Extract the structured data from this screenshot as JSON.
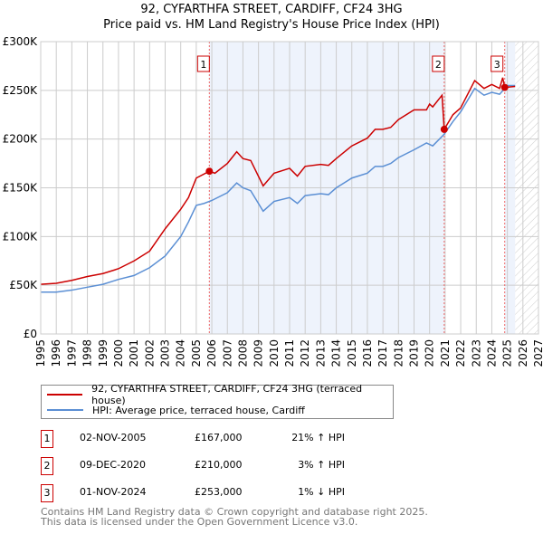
{
  "chart_data": {
    "type": "line",
    "title": "92, CYFARTHFA STREET, CARDIFF, CF24 3HG",
    "subtitle": "Price paid vs. HM Land Registry's House Price Index (HPI)",
    "xlim": [
      1995,
      2027
    ],
    "ylim": [
      0,
      300000
    ],
    "x_ticks": [
      "1995",
      "1996",
      "1997",
      "1998",
      "1999",
      "2000",
      "2001",
      "2002",
      "2003",
      "2004",
      "2005",
      "2006",
      "2007",
      "2008",
      "2009",
      "2010",
      "2011",
      "2012",
      "2013",
      "2014",
      "2015",
      "2016",
      "2017",
      "2018",
      "2019",
      "2020",
      "2021",
      "2022",
      "2023",
      "2024",
      "2025",
      "2026",
      "2027"
    ],
    "y_ticks": [
      {
        "v": 0,
        "label": "£0"
      },
      {
        "v": 50000,
        "label": "£50K"
      },
      {
        "v": 100000,
        "label": "£100K"
      },
      {
        "v": 150000,
        "label": "£150K"
      },
      {
        "v": 200000,
        "label": "£200K"
      },
      {
        "v": 250000,
        "label": "£250K"
      },
      {
        "v": 300000,
        "label": "£300K"
      }
    ],
    "grid": true,
    "shaded_ranges": [
      [
        2005.84,
        2020.94
      ],
      [
        2024.83,
        2025.5
      ]
    ],
    "hatched_range": [
      2025.5,
      2027
    ],
    "series": [
      {
        "name": "92, CYFARTHFA STREET, CARDIFF, CF24 3HG (terraced house)",
        "color": "#cc0000",
        "x": [
          1995,
          1996,
          1997,
          1998,
          1999,
          2000,
          2001,
          2002,
          2003,
          2004,
          2004.5,
          2005,
          2005.84,
          2006.2,
          2007,
          2007.6,
          2008,
          2008.5,
          2009.3,
          2010,
          2011,
          2011.5,
          2012,
          2013,
          2013.5,
          2014,
          2015,
          2016,
          2016.5,
          2017,
          2017.5,
          2018,
          2019,
          2019.8,
          2020,
          2020.2,
          2020.8,
          2020.94,
          2021.5,
          2022,
          2022.9,
          2023.5,
          2024,
          2024.5,
          2024.7,
          2024.83,
          2025.5
        ],
        "y": [
          51000,
          52000,
          55000,
          59000,
          62000,
          67000,
          75000,
          85000,
          108000,
          128000,
          140000,
          160000,
          167000,
          165000,
          175000,
          187000,
          180000,
          178000,
          152000,
          165000,
          170000,
          162000,
          172000,
          174000,
          173000,
          180000,
          193000,
          201000,
          210000,
          210000,
          212000,
          220000,
          230000,
          230000,
          236000,
          233000,
          245000,
          210000,
          225000,
          232000,
          260000,
          252000,
          256000,
          252000,
          263000,
          253000,
          254000
        ]
      },
      {
        "name": "HPI: Average price, terraced house, Cardiff",
        "color": "#5b8fd4",
        "x": [
          1995,
          1996,
          1997,
          1998,
          1999,
          2000,
          2001,
          2002,
          2003,
          2004,
          2004.5,
          2005,
          2005.5,
          2006,
          2007,
          2007.6,
          2008,
          2008.5,
          2009.3,
          2010,
          2011,
          2011.5,
          2012,
          2013,
          2013.5,
          2014,
          2015,
          2016,
          2016.5,
          2017,
          2017.5,
          2018,
          2019,
          2019.8,
          2020.2,
          2020.94,
          2021.5,
          2022,
          2022.9,
          2023.5,
          2024,
          2024.5,
          2025,
          2025.5
        ],
        "y": [
          43000,
          43000,
          45000,
          48000,
          51000,
          56000,
          60000,
          68000,
          80000,
          100000,
          115000,
          132000,
          134000,
          137000,
          145000,
          155000,
          150000,
          147000,
          126000,
          136000,
          140000,
          134000,
          142000,
          144000,
          143000,
          150000,
          160000,
          165000,
          172000,
          172000,
          175000,
          181000,
          189000,
          196000,
          193000,
          205000,
          218000,
          228000,
          252000,
          245000,
          248000,
          246000,
          255000,
          255000
        ]
      }
    ],
    "sales": [
      {
        "num": "1",
        "x": 2005.84,
        "y": 167000,
        "date": "02-NOV-2005",
        "price": "£167,000",
        "hpi": "21% ↑ HPI"
      },
      {
        "num": "2",
        "x": 2020.94,
        "y": 210000,
        "date": "09-DEC-2020",
        "price": "£210,000",
        "hpi": "3% ↑ HPI"
      },
      {
        "num": "3",
        "x": 2024.83,
        "y": 253000,
        "date": "01-NOV-2024",
        "price": "£253,000",
        "hpi": "1% ↓ HPI"
      }
    ]
  },
  "footer": {
    "line1": "Contains HM Land Registry data © Crown copyright and database right 2025.",
    "line2": "This data is licensed under the Open Government Licence v3.0."
  }
}
